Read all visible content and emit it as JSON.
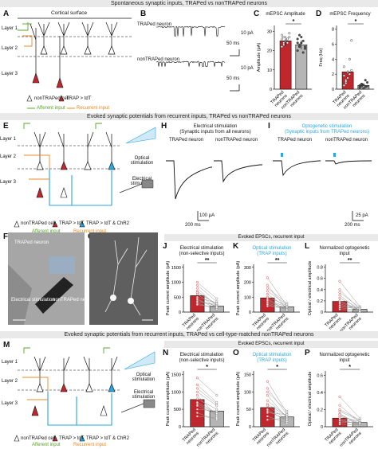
{
  "sections": {
    "s1": "Spontaneous synaptic inputs, TRAPed vs nonTRAPed neurons",
    "s2": "Evoked synaptic potentials from recurrent inputs, TRAPed vs nonTRAPed neurons",
    "s3": "Evoked synaptic potentials from recurrent inputs, TRAPed vs cell-type-matched nonTRAPed neurons"
  },
  "panels": {
    "A": {
      "label": "A",
      "title": "Cortical surface",
      "layers": [
        "Layer 1",
        "Layer 2",
        "Layer 3"
      ],
      "legend": {
        "nontraped": "nonTRAPed cell",
        "trap": "TRAP > tdT",
        "afferent": "Afferent input",
        "recurrent": "Recurrent input"
      }
    },
    "B": {
      "label": "B",
      "traped": "TRAPed neuron",
      "nontraped": "nonTRAPed neuron",
      "scale_y": "10 pA",
      "scale_x": "50 ms"
    },
    "C": {
      "label": "C",
      "title": "mEPSC Amplitude",
      "ylabel": "Amplitude (pA)",
      "yticks": [
        "0",
        "10",
        "20",
        "30"
      ],
      "star": "*",
      "xlabels": [
        "TRAPed neurons",
        "nonTRAPed neurons"
      ]
    },
    "D": {
      "label": "D",
      "title": "mEPSC Frequency",
      "ylabel": "Freq (Hz)",
      "yticks": [
        "0",
        "2",
        "4",
        "6",
        "8"
      ],
      "star": "*",
      "xlabels": [
        "TRAPed neurons",
        "nonTRAPed neurons"
      ]
    },
    "E": {
      "label": "E",
      "layers": [
        "Layer 1",
        "Layer 2",
        "Layer 3"
      ],
      "optical": "Optical stimulation",
      "electrical": "Electrical stimulation",
      "legend": {
        "nontraped": "nonTRAPed cell",
        "trap": "TRAP > tdT",
        "chr2": "TRAP > tdT & ChR2",
        "afferent": "Afferent input",
        "recurrent": "Recurrent input"
      }
    },
    "H": {
      "label": "H",
      "title1": "Electrical stimulation",
      "title2": "(Synaptic inputs from all neurons)",
      "traped": "TRAPed neuron",
      "nontraped": "nonTRAPed neuron",
      "scale_y": "100 μA",
      "scale_x": "200 ms"
    },
    "I": {
      "label": "I",
      "title1": "Optogenetic stimulation",
      "title2": "(Synaptic inputs from TRAPed neurons)",
      "traped": "TRAPed neuron",
      "nontraped": "nonTRAPed neuron",
      "scale_y": "25 pA",
      "scale_x": "200 ms"
    },
    "F": {
      "label": "F",
      "traped": "TRAPed neuron",
      "electrical": "Electrical stimulation",
      "nontraped": "nonTRAPed neuron"
    },
    "G": {
      "label": "G"
    },
    "JKL_header": "Evoked EPSCs, recurrent input",
    "J": {
      "label": "J",
      "title1": "Electrical stimulation",
      "title2": "(non-selective inputs)",
      "ylabel": "Peak current amplitude (pA)",
      "yticks": [
        "0",
        "500",
        "1000",
        "1500"
      ],
      "star": "**",
      "xlabels": [
        "TRAPed neurons",
        "nonTRAPed neurons"
      ]
    },
    "K": {
      "label": "K",
      "title1": "Optical stimulation",
      "title2": "(TRAP inputs)",
      "ylabel": "Peak current amplitude (pA)",
      "yticks": [
        "0",
        "100",
        "200",
        "300"
      ],
      "star": "**",
      "xlabels": [
        "TRAPed neurons",
        "nonTRAPed neurons"
      ]
    },
    "L": {
      "label": "L",
      "title1": "Normalized optogenetic",
      "title2": "input",
      "ylabel": "Optical / electrical amplitude",
      "yticks": [
        "0",
        "0.2",
        "0.4",
        "0.6",
        "0.8"
      ],
      "star": "**",
      "xlabels": [
        "TRAPed neurons",
        "nonTRAPed neurons"
      ]
    },
    "M": {
      "label": "M",
      "layers": [
        "Layer 1",
        "Layer 2",
        "Layer 3"
      ],
      "optical": "Optical stimulation",
      "electrical": "Electrical stimulation",
      "legend": {
        "nontraped": "nonTRAPed cell",
        "trap": "TRAP > tdT",
        "chr2": "TRAP > tdT & ChR2",
        "afferent": "Afferent input",
        "recurrent": "Recurrent input"
      }
    },
    "NOP_header": "Evoked EPSCs, recurrent input",
    "N": {
      "label": "N",
      "title1": "Electrical stimulation",
      "title2": "(non-selective inputs)",
      "ylabel": "Peak current amplitude (pA)",
      "yticks": [
        "0",
        "500",
        "1000",
        "1500"
      ],
      "star": "*",
      "xlabels": [
        "TRAPed neurons",
        "nonTRAPed neurons"
      ]
    },
    "O": {
      "label": "O",
      "title1": "Optical stimulation",
      "title2": "(TRAP inputs)",
      "ylabel": "Peak current amplitude (pA)",
      "yticks": [
        "0",
        "50",
        "100",
        "150"
      ],
      "star": "*",
      "xlabels": [
        "TRAPed neurons",
        "nonTRAPed neurons"
      ]
    },
    "P": {
      "label": "P",
      "title1": "Normalized optogenetic",
      "title2": "input",
      "ylabel": "Optical / electrical amplitude",
      "yticks": [
        "0",
        "0.2",
        "0.4",
        "0.6"
      ],
      "star": "*",
      "xlabels": [
        "TRAPed neurons",
        "nonTRAPed neurons"
      ]
    }
  },
  "chart_data": [
    {
      "panel": "C",
      "type": "bar",
      "categories": [
        "TRAPed neurons",
        "nonTRAPed neurons"
      ],
      "values": [
        25,
        23
      ],
      "points": [
        [
          22,
          24,
          25,
          26,
          27,
          28,
          23,
          25,
          24,
          29,
          26,
          27
        ],
        [
          20,
          22,
          24,
          25,
          21,
          26,
          23,
          27,
          19,
          22,
          24,
          28
        ]
      ],
      "ylim": [
        0,
        33
      ]
    },
    {
      "panel": "D",
      "type": "bar",
      "categories": [
        "TRAPed neurons",
        "nonTRAPed neurons"
      ],
      "values": [
        2.3,
        0.5
      ],
      "points": [
        [
          0.5,
          1,
          1.5,
          2,
          2.5,
          3,
          1.2,
          2.2,
          4,
          6.5,
          1.8,
          0.8
        ],
        [
          0.2,
          0.4,
          0.6,
          0.3,
          0.9,
          0.5,
          0.7,
          0.1,
          1.2,
          0.4,
          0.3,
          0.6
        ]
      ],
      "ylim": [
        0,
        8.5
      ]
    },
    {
      "panel": "J",
      "type": "bar",
      "categories": [
        "TRAPed neurons",
        "nonTRAPed neurons"
      ],
      "values": [
        550,
        200
      ],
      "pairs": [
        [
          1000,
          450
        ],
        [
          900,
          350
        ],
        [
          700,
          250
        ],
        [
          600,
          150
        ],
        [
          500,
          300
        ],
        [
          450,
          100
        ],
        [
          400,
          200
        ],
        [
          350,
          250
        ],
        [
          300,
          100
        ],
        [
          250,
          150
        ],
        [
          800,
          200
        ],
        [
          650,
          280
        ]
      ],
      "ylim": [
        0,
        1600
      ]
    },
    {
      "panel": "K",
      "type": "bar",
      "categories": [
        "TRAPed neurons",
        "nonTRAPed neurons"
      ],
      "values": [
        95,
        35
      ],
      "pairs": [
        [
          230,
          40
        ],
        [
          180,
          20
        ],
        [
          160,
          60
        ],
        [
          120,
          30
        ],
        [
          100,
          45
        ],
        [
          90,
          10
        ],
        [
          70,
          25
        ],
        [
          60,
          20
        ],
        [
          50,
          15
        ],
        [
          40,
          30
        ],
        [
          140,
          50
        ],
        [
          80,
          35
        ]
      ],
      "ylim": [
        0,
        320
      ]
    },
    {
      "panel": "L",
      "type": "bar",
      "categories": [
        "TRAPed neurons",
        "nonTRAPed neurons"
      ],
      "values": [
        0.19,
        0.05
      ],
      "pairs": [
        [
          0.55,
          0.1
        ],
        [
          0.4,
          0.05
        ],
        [
          0.35,
          0.08
        ],
        [
          0.3,
          0.02
        ],
        [
          0.25,
          0.06
        ],
        [
          0.2,
          0.04
        ],
        [
          0.15,
          0.03
        ],
        [
          0.1,
          0.05
        ],
        [
          0.08,
          0.02
        ],
        [
          0.05,
          0.01
        ],
        [
          0.12,
          0.07
        ],
        [
          0.18,
          0.04
        ]
      ],
      "ylim": [
        0,
        0.85
      ]
    },
    {
      "panel": "N",
      "type": "bar",
      "categories": [
        "TRAPed neurons",
        "nonTRAPed neurons"
      ],
      "values": [
        780,
        450
      ],
      "pairs": [
        [
          1400,
          900
        ],
        [
          1200,
          700
        ],
        [
          1000,
          600
        ],
        [
          900,
          300
        ],
        [
          800,
          500
        ],
        [
          700,
          400
        ],
        [
          600,
          350
        ],
        [
          500,
          450
        ],
        [
          400,
          200
        ],
        [
          300,
          250
        ],
        [
          1100,
          650
        ],
        [
          650,
          380
        ]
      ],
      "ylim": [
        0,
        1600
      ]
    },
    {
      "panel": "O",
      "type": "bar",
      "categories": [
        "TRAPed neurons",
        "nonTRAPed neurons"
      ],
      "values": [
        55,
        28
      ],
      "pairs": [
        [
          130,
          40
        ],
        [
          110,
          35
        ],
        [
          90,
          25
        ],
        [
          75,
          30
        ],
        [
          60,
          20
        ],
        [
          50,
          15
        ],
        [
          40,
          35
        ],
        [
          30,
          10
        ],
        [
          20,
          25
        ],
        [
          100,
          45
        ],
        [
          65,
          30
        ],
        [
          45,
          20
        ]
      ],
      "ylim": [
        0,
        160
      ]
    },
    {
      "panel": "P",
      "type": "bar",
      "categories": [
        "TRAPed neurons",
        "nonTRAPed neurons"
      ],
      "values": [
        0.1,
        0.05
      ],
      "pairs": [
        [
          0.35,
          0.1
        ],
        [
          0.25,
          0.05
        ],
        [
          0.2,
          0.08
        ],
        [
          0.15,
          0.02
        ],
        [
          0.12,
          0.06
        ],
        [
          0.1,
          0.04
        ],
        [
          0.08,
          0.03
        ],
        [
          0.05,
          0.05
        ],
        [
          0.03,
          0.02
        ],
        [
          0.18,
          0.07
        ],
        [
          0.07,
          0.03
        ],
        [
          0.14,
          0.04
        ]
      ],
      "ylim": [
        0,
        0.65
      ]
    }
  ]
}
